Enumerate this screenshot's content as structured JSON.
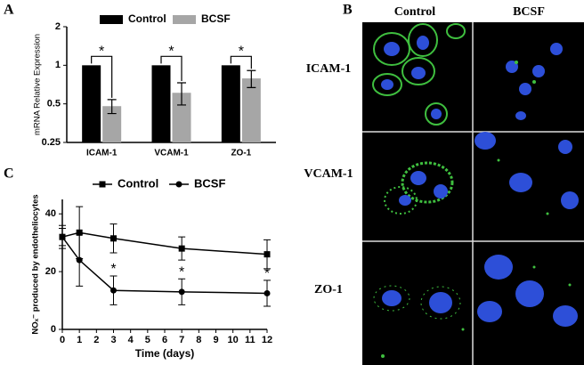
{
  "chart_data": [
    {
      "type": "bar",
      "panel_label": "A",
      "ylabel": "mRNA Relative Expression",
      "log_scale": true,
      "categories": [
        "ICAM-1",
        "VCAM-1",
        "ZO-1"
      ],
      "series": [
        {
          "name": "Control",
          "color": "#000000",
          "values": [
            1,
            1,
            1
          ]
        },
        {
          "name": "BCSF",
          "color": "#a6a6a6",
          "values": [
            0.48,
            0.61,
            0.79
          ],
          "errors": [
            0.06,
            0.12,
            0.12
          ]
        }
      ],
      "significance": [
        "*",
        "*",
        "*"
      ],
      "ylim": [
        0.25,
        2
      ],
      "yticks": [
        0.25,
        0.5,
        1,
        2
      ]
    },
    {
      "type": "line",
      "panel_label": "C",
      "ylabel": "NOₓ⁻ produced by endotheliocytes",
      "xlabel": "Time (days)",
      "x": [
        0,
        1,
        3,
        7,
        12
      ],
      "series": [
        {
          "name": "Control",
          "color": "#000000",
          "marker": "square",
          "values": [
            32,
            33.5,
            31.5,
            28,
            26
          ],
          "errors": [
            3,
            9,
            5,
            4,
            5
          ]
        },
        {
          "name": "BCSF",
          "color": "#000000",
          "marker": "circle",
          "values": [
            32,
            24,
            13.5,
            13,
            12.5
          ],
          "errors": [
            4,
            9,
            5,
            4.5,
            4.5
          ]
        }
      ],
      "annotations": [
        {
          "text": "*",
          "x": 3
        },
        {
          "text": "*",
          "x": 7
        },
        {
          "text": "*",
          "x": 12
        }
      ],
      "xlim": [
        0,
        12
      ],
      "xticks": [
        0,
        1,
        2,
        3,
        4,
        5,
        6,
        7,
        8,
        9,
        10,
        11,
        12
      ],
      "ylim": [
        0,
        45
      ],
      "yticks": [
        0,
        20,
        40
      ]
    }
  ],
  "panel_b": {
    "label": "B",
    "columns": [
      "Control",
      "BCSF"
    ],
    "rows": [
      "ICAM-1",
      "VCAM-1",
      "ZO-1"
    ]
  }
}
